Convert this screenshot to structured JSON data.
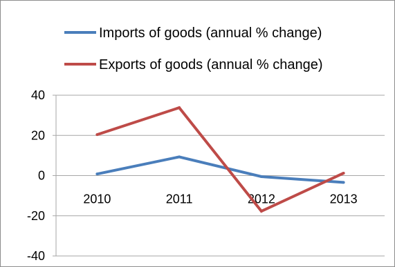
{
  "chart_data": {
    "type": "line",
    "title": "",
    "xlabel": "",
    "ylabel": "",
    "categories": [
      "2010",
      "2011",
      "2012",
      "2013"
    ],
    "ylim": [
      -40,
      40
    ],
    "yticks": [
      "40",
      "20",
      "0",
      "-20",
      "-40"
    ],
    "grid": true,
    "legend_position": "top",
    "series": [
      {
        "name": "Imports of goods (annual % change)",
        "color": "#4a7ebb",
        "values": [
          0.8,
          9.3,
          -0.5,
          -3.4
        ]
      },
      {
        "name": "Exports of goods (annual % change)",
        "color": "#be4b48",
        "values": [
          20.4,
          33.8,
          -17.7,
          1.2
        ]
      }
    ]
  }
}
